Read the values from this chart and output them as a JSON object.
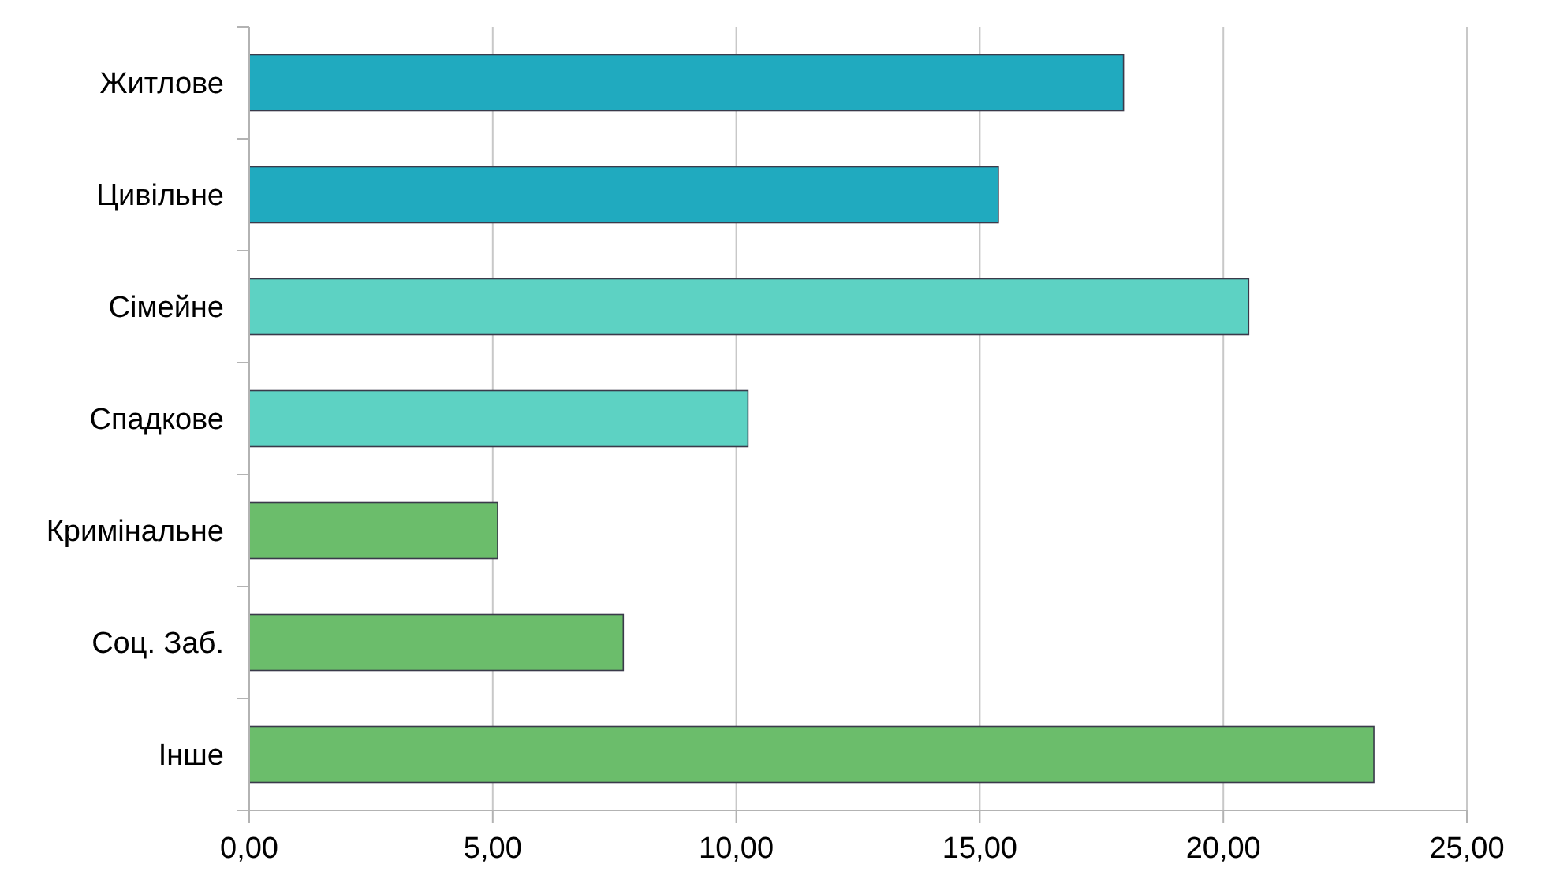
{
  "chart_data": {
    "type": "bar",
    "orientation": "horizontal",
    "categories": [
      "Житлове",
      "Цивільне",
      "Сімейне",
      "Спадкове",
      "Кримінальне",
      "Соц. Заб.",
      "Інше"
    ],
    "values": [
      17.95,
      15.38,
      20.52,
      10.24,
      5.1,
      7.68,
      23.09
    ],
    "colors": [
      "#20aabf",
      "#20aabf",
      "#5dd2c3",
      "#5dd2c3",
      "#6bbd6b",
      "#6bbd6b",
      "#6bbd6b"
    ],
    "xlim": [
      0,
      25
    ],
    "xticks": [
      {
        "value": 0,
        "label": "0,00"
      },
      {
        "value": 5,
        "label": "5,00"
      },
      {
        "value": 10,
        "label": "10,00"
      },
      {
        "value": 15,
        "label": "15,00"
      },
      {
        "value": 20,
        "label": "20,00"
      },
      {
        "value": 25,
        "label": "25,00"
      }
    ],
    "grid": "x"
  }
}
